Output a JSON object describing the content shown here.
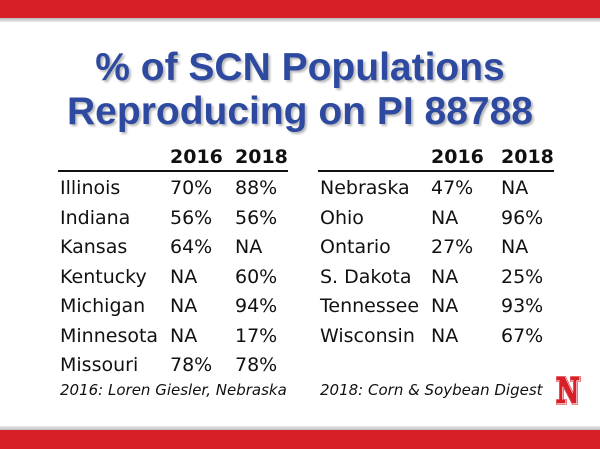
{
  "title": {
    "line1": "% of SCN Populations",
    "line2": "Reproducing on PI 88788"
  },
  "colors": {
    "brand_red": "#d71f27",
    "title_blue": "#2e4aa0"
  },
  "left_table": {
    "headers": [
      "",
      "2016",
      "2018"
    ],
    "rows": [
      [
        "Illinois",
        "70%",
        "88%"
      ],
      [
        "Indiana",
        "56%",
        "56%"
      ],
      [
        "Kansas",
        "64%",
        "NA"
      ],
      [
        "Kentucky",
        "NA",
        "60%"
      ],
      [
        "Michigan",
        "NA",
        "94%"
      ],
      [
        "Minnesota",
        "NA",
        "17%"
      ],
      [
        "Missouri",
        "78%",
        "78%"
      ]
    ]
  },
  "right_table": {
    "headers": [
      "",
      "2016",
      "2018"
    ],
    "rows": [
      [
        "Nebraska",
        "47%",
        "NA"
      ],
      [
        "Ohio",
        "NA",
        "96%"
      ],
      [
        "Ontario",
        "27%",
        "NA"
      ],
      [
        "S. Dakota",
        "NA",
        "25%"
      ],
      [
        "Tennessee",
        "NA",
        "93%"
      ],
      [
        "Wisconsin",
        "NA",
        "67%"
      ]
    ]
  },
  "footnotes": {
    "left": "2016: Loren Giesler, Nebraska",
    "right": "2018: Corn & Soybean Digest"
  },
  "logo": {
    "icon": "nebraska-n-logo",
    "text": "N"
  }
}
